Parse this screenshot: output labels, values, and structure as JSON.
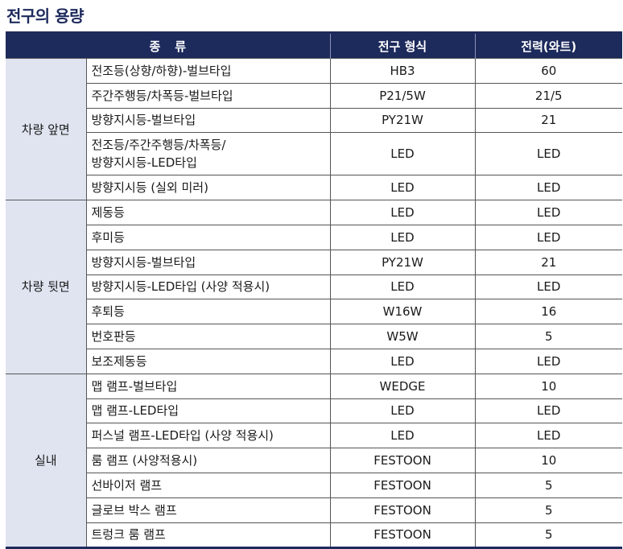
{
  "title": "전구의 용량",
  "header": {
    "kind_a": "종",
    "kind_b": "류",
    "bulb_type": "전구 형식",
    "power": "전력(와트)"
  },
  "groups": [
    {
      "name": "차량 앞면",
      "rows": [
        {
          "label": "전조등(상향/하향)-벌브타입",
          "type": "HB3",
          "watt": "60"
        },
        {
          "label": "주간주행등/차폭등-벌브타입",
          "type": "P21/5W",
          "watt": "21/5"
        },
        {
          "label": "방향지시등-벌브타입",
          "type": "PY21W",
          "watt": "21"
        },
        {
          "label": "전조등/주간주행등/차폭등/",
          "label2": "방향지시등-LED타입",
          "type": "LED",
          "watt": "LED"
        },
        {
          "label": "방향지시등 (실외 미러)",
          "type": "LED",
          "watt": "LED"
        }
      ]
    },
    {
      "name": "차량 뒷면",
      "rows": [
        {
          "label": "제동등",
          "type": "LED",
          "watt": "LED"
        },
        {
          "label": "후미등",
          "type": "LED",
          "watt": "LED"
        },
        {
          "label": "방향지시등-벌브타입",
          "type": "PY21W",
          "watt": "21"
        },
        {
          "label": "방향지시등-LED타입 (사양 적용시)",
          "type": "LED",
          "watt": "LED"
        },
        {
          "label": "후퇴등",
          "type": "W16W",
          "watt": "16"
        },
        {
          "label": "번호판등",
          "type": "W5W",
          "watt": "5"
        },
        {
          "label": "보조제동등",
          "type": "LED",
          "watt": "LED"
        }
      ]
    },
    {
      "name": "실내",
      "rows": [
        {
          "label": "맵 램프-벌브타입",
          "type": "WEDGE",
          "watt": "10"
        },
        {
          "label": "맵 램프-LED타입",
          "type": "LED",
          "watt": "LED"
        },
        {
          "label": "퍼스널 램프-LED타입 (사양 적용시)",
          "type": "LED",
          "watt": "LED"
        },
        {
          "label": "룸 램프 (사양적용시)",
          "type": "FESTOON",
          "watt": "10"
        },
        {
          "label": "선바이저 램프",
          "type": "FESTOON",
          "watt": "5"
        },
        {
          "label": "글로브 박스 램프",
          "type": "FESTOON",
          "watt": "5"
        },
        {
          "label": "트렁크 룸 램프",
          "type": "FESTOON",
          "watt": "5"
        }
      ]
    }
  ]
}
